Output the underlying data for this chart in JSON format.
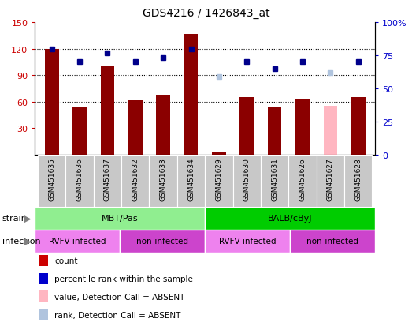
{
  "title": "GDS4216 / 1426843_at",
  "samples": [
    "GSM451635",
    "GSM451636",
    "GSM451637",
    "GSM451632",
    "GSM451633",
    "GSM451634",
    "GSM451629",
    "GSM451630",
    "GSM451631",
    "GSM451626",
    "GSM451627",
    "GSM451628"
  ],
  "counts": [
    120,
    54,
    100,
    61,
    68,
    137,
    2,
    65,
    54,
    63,
    55,
    65
  ],
  "count_absent_flag": [
    false,
    false,
    false,
    false,
    false,
    false,
    false,
    false,
    false,
    false,
    true,
    false
  ],
  "ranks_left_scale": [
    120,
    105,
    115,
    105,
    110,
    120,
    88,
    105,
    97,
    105,
    93,
    105
  ],
  "rank_absent_flag": [
    false,
    false,
    false,
    false,
    false,
    false,
    true,
    false,
    false,
    false,
    true,
    false
  ],
  "ylim_left": [
    0,
    150
  ],
  "ylim_right": [
    0,
    100
  ],
  "yticks_left": [
    30,
    60,
    90,
    120,
    150
  ],
  "yticks_right": [
    0,
    25,
    50,
    75,
    100
  ],
  "strain_groups": [
    {
      "label": "MBT/Pas",
      "start": 0,
      "end": 6,
      "color": "#90ee90"
    },
    {
      "label": "BALB/cByJ",
      "start": 6,
      "end": 12,
      "color": "#00cc00"
    }
  ],
  "infection_groups": [
    {
      "label": "RVFV infected",
      "start": 0,
      "end": 3,
      "color": "#ee82ee"
    },
    {
      "label": "non-infected",
      "start": 3,
      "end": 6,
      "color": "#cc44cc"
    },
    {
      "label": "RVFV infected",
      "start": 6,
      "end": 9,
      "color": "#ee82ee"
    },
    {
      "label": "non-infected",
      "start": 9,
      "end": 12,
      "color": "#cc44cc"
    }
  ],
  "bar_color": "#8b0000",
  "absent_bar_color": "#ffb6c1",
  "rank_color": "#00008b",
  "absent_rank_color": "#b0c4de",
  "grid_yticks": [
    60,
    90,
    120
  ],
  "left_tick_color": "#cc0000",
  "right_tick_color": "#0000cc",
  "gray_col_color": "#c8c8c8",
  "legend_items": [
    {
      "label": "count",
      "color": "#cc0000"
    },
    {
      "label": "percentile rank within the sample",
      "color": "#0000cc"
    },
    {
      "label": "value, Detection Call = ABSENT",
      "color": "#ffb6c1"
    },
    {
      "label": "rank, Detection Call = ABSENT",
      "color": "#b0c4de"
    }
  ]
}
